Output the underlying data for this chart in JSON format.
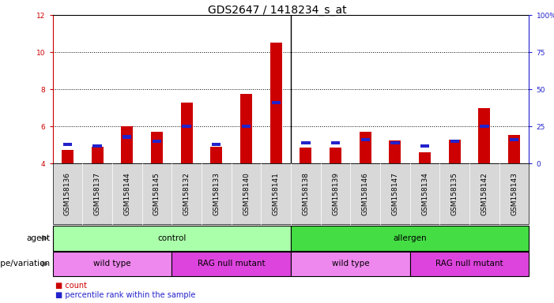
{
  "title": "GDS2647 / 1418234_s_at",
  "samples": [
    "GSM158136",
    "GSM158137",
    "GSM158144",
    "GSM158145",
    "GSM158132",
    "GSM158133",
    "GSM158140",
    "GSM158141",
    "GSM158138",
    "GSM158139",
    "GSM158146",
    "GSM158147",
    "GSM158134",
    "GSM158135",
    "GSM158142",
    "GSM158143"
  ],
  "count_values": [
    4.75,
    4.9,
    6.0,
    5.7,
    7.3,
    4.9,
    7.75,
    10.5,
    4.85,
    4.85,
    5.7,
    5.25,
    4.6,
    5.3,
    7.0,
    5.55
  ],
  "percentile_values": [
    13,
    12,
    18,
    15,
    25,
    13,
    25,
    41,
    14,
    14,
    16,
    14,
    12,
    15,
    25,
    16
  ],
  "bar_base": 4.0,
  "red_color": "#cc0000",
  "blue_color": "#2222cc",
  "ylim_left": [
    4,
    12
  ],
  "ylim_right": [
    0,
    100
  ],
  "yticks_left": [
    4,
    6,
    8,
    10,
    12
  ],
  "yticks_right": [
    0,
    25,
    50,
    75,
    100
  ],
  "ytick_labels_right": [
    "0",
    "25",
    "50",
    "75",
    "100%"
  ],
  "grid_yticks": [
    6,
    8,
    10
  ],
  "agent_groups": [
    {
      "label": "control",
      "start": 0,
      "end": 8,
      "color": "#aaffaa"
    },
    {
      "label": "allergen",
      "start": 8,
      "end": 16,
      "color": "#44dd44"
    }
  ],
  "genotype_groups": [
    {
      "label": "wild type",
      "start": 0,
      "end": 4,
      "color": "#ee88ee"
    },
    {
      "label": "RAG null mutant",
      "start": 4,
      "end": 8,
      "color": "#dd44dd"
    },
    {
      "label": "wild type",
      "start": 8,
      "end": 12,
      "color": "#ee88ee"
    },
    {
      "label": "RAG null mutant",
      "start": 12,
      "end": 16,
      "color": "#dd44dd"
    }
  ],
  "legend_count_label": "count",
  "legend_percentile_label": "percentile rank within the sample",
  "agent_label": "agent",
  "genotype_label": "genotype/variation",
  "bar_width": 0.4,
  "left_axis_color": "#cc0000",
  "right_axis_color": "#2222cc",
  "title_fontsize": 10,
  "tick_fontsize": 6.5,
  "label_fontsize": 7.5,
  "annotation_fontsize": 7.5
}
